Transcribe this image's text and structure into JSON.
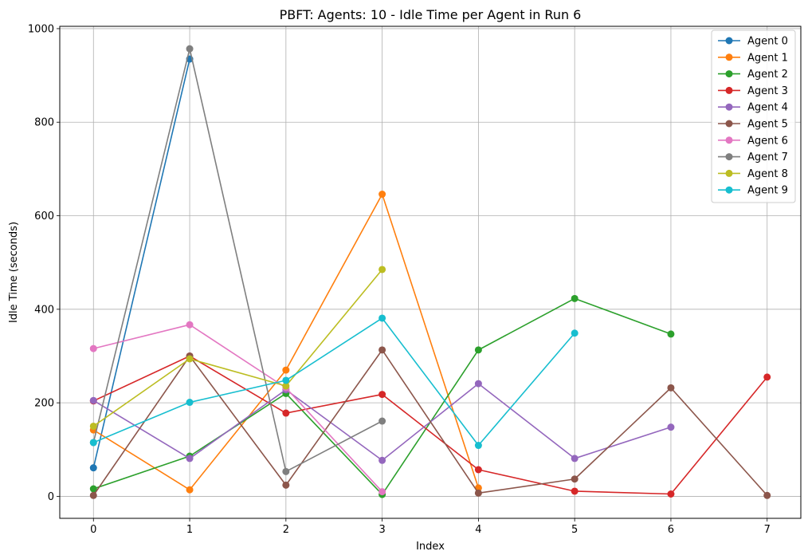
{
  "chart_data": {
    "type": "line",
    "title": "PBFT: Agents: 10 - Idle Time per Agent in Run 6",
    "xlabel": "Index",
    "ylabel": "Idle Time (seconds)",
    "xlim": [
      -0.35,
      7.35
    ],
    "ylim": [
      -47,
      1005
    ],
    "xticks": [
      0,
      1,
      2,
      3,
      4,
      5,
      6,
      7
    ],
    "yticks": [
      0,
      200,
      400,
      600,
      800,
      1000
    ],
    "grid": true,
    "legend_position": "top-right",
    "series": [
      {
        "name": "Agent 0",
        "color": "#1f77b4",
        "x": [
          0,
          1
        ],
        "values": [
          61,
          935
        ]
      },
      {
        "name": "Agent 1",
        "color": "#ff7f0e",
        "x": [
          0,
          1,
          2,
          3,
          4
        ],
        "values": [
          142,
          14,
          270,
          646,
          18
        ]
      },
      {
        "name": "Agent 2",
        "color": "#2ca02c",
        "x": [
          0,
          1,
          2,
          3,
          4,
          5,
          6
        ],
        "values": [
          16,
          86,
          220,
          4,
          313,
          423,
          347
        ]
      },
      {
        "name": "Agent 3",
        "color": "#d62728",
        "x": [
          0,
          1,
          2,
          3,
          4,
          5,
          6,
          7
        ],
        "values": [
          204,
          300,
          178,
          218,
          57,
          11,
          5,
          255
        ]
      },
      {
        "name": "Agent 4",
        "color": "#9467bd",
        "x": [
          0,
          1,
          2,
          3,
          4,
          5,
          6
        ],
        "values": [
          205,
          81,
          228,
          77,
          241,
          81,
          148
        ]
      },
      {
        "name": "Agent 5",
        "color": "#8c564b",
        "x": [
          0,
          1,
          2,
          3,
          4,
          5,
          6,
          7
        ],
        "values": [
          2,
          300,
          24,
          313,
          7,
          37,
          232,
          2
        ]
      },
      {
        "name": "Agent 6",
        "color": "#e377c2",
        "x": [
          0,
          1,
          2,
          3
        ],
        "values": [
          316,
          367,
          232,
          10
        ]
      },
      {
        "name": "Agent 7",
        "color": "#7f7f7f",
        "x": [
          0,
          1,
          2,
          3
        ],
        "values": [
          115,
          957,
          53,
          161
        ]
      },
      {
        "name": "Agent 8",
        "color": "#bcbd22",
        "x": [
          0,
          1,
          2,
          3
        ],
        "values": [
          150,
          294,
          236,
          485
        ]
      },
      {
        "name": "Agent 9",
        "color": "#17becf",
        "x": [
          0,
          1,
          2,
          3,
          4,
          5
        ],
        "values": [
          115,
          201,
          248,
          381,
          109,
          349
        ]
      }
    ]
  }
}
